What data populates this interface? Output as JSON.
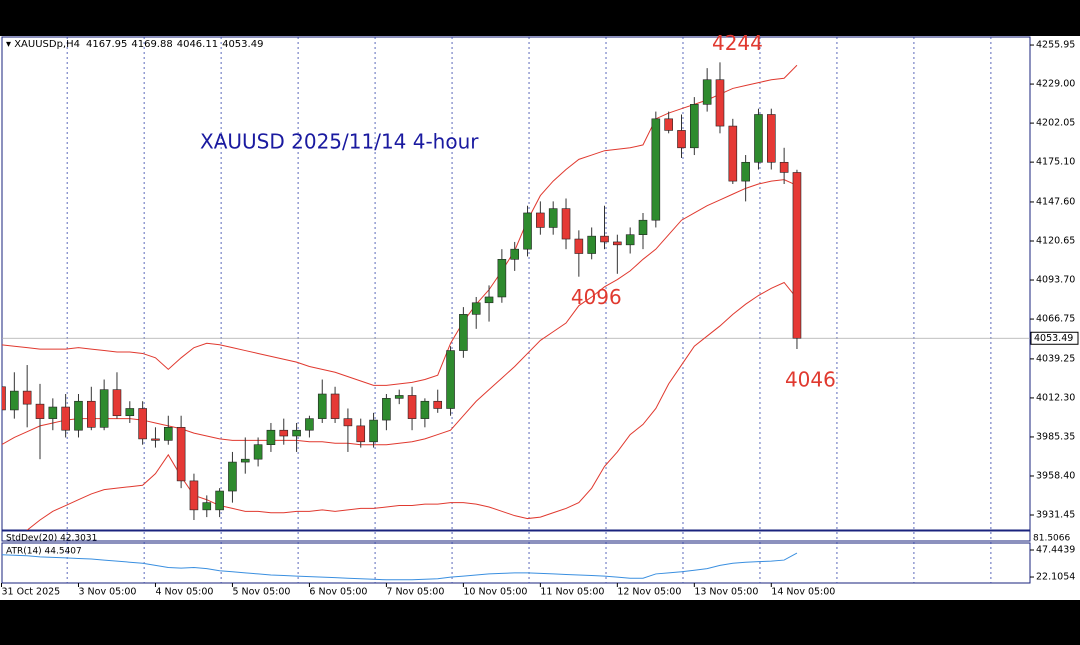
{
  "chart_data": {
    "type": "candlestick",
    "symbol": "XAUUSDp,H4",
    "title": "XAUUSD 2025/11/14 4-hour",
    "annotations": [
      {
        "text": "4244",
        "index": 56
      },
      {
        "text": "4096",
        "index": 45
      },
      {
        "text": "4046",
        "index": 62
      }
    ],
    "categories": [
      "31 Oct 2025",
      null,
      null,
      null,
      null,
      null,
      "3 Nov 05:00",
      null,
      null,
      null,
      null,
      null,
      "4 Nov 05:00",
      null,
      null,
      null,
      null,
      null,
      "5 Nov 05:00",
      null,
      null,
      null,
      null,
      null,
      "6 Nov 05:00",
      null,
      null,
      null,
      null,
      null,
      "7 Nov 05:00",
      null,
      null,
      null,
      null,
      null,
      "10 Nov 05:00",
      null,
      null,
      null,
      null,
      null,
      "11 Nov 05:00",
      null,
      null,
      null,
      null,
      null,
      "12 Nov 05:00",
      null,
      null,
      null,
      null,
      null,
      "13 Nov 05:00",
      null,
      null,
      null,
      null,
      null,
      "14 Nov 05:00",
      null,
      null
    ],
    "open": [
      4020,
      4004,
      4017,
      4008,
      3998,
      4006,
      3990,
      4010,
      3992,
      4018,
      4000,
      4005,
      3984,
      3983,
      3992,
      3955,
      3935,
      3935,
      3948,
      3968,
      3970,
      3980,
      3990,
      3986,
      3990,
      3998,
      4015,
      3998,
      3993,
      3982,
      3997,
      4012,
      4014,
      3998,
      4010,
      4005,
      4045,
      4070,
      4078,
      4082,
      4108,
      4115,
      4140,
      4130,
      4143,
      4122,
      4112,
      4124,
      4120,
      4118,
      4125,
      4135,
      4205,
      4197,
      4185,
      4215,
      4232,
      4200,
      4162,
      4175,
      4208,
      4175,
      4167.95
    ],
    "high": [
      4028,
      4030,
      4035,
      4022,
      4012,
      4015,
      4015,
      4020,
      4025,
      4030,
      4010,
      4010,
      3992,
      4000,
      4000,
      3960,
      3945,
      3950,
      3975,
      3985,
      3985,
      3995,
      3998,
      3995,
      4000,
      4025,
      4020,
      4005,
      3998,
      4002,
      4015,
      4018,
      4020,
      4012,
      4018,
      4048,
      4075,
      4082,
      4090,
      4115,
      4120,
      4145,
      4148,
      4148,
      4150,
      4128,
      4130,
      4145,
      4125,
      4130,
      4140,
      4210,
      4210,
      4208,
      4220,
      4240,
      4244,
      4205,
      4180,
      4212,
      4212,
      4185,
      4169.88
    ],
    "low": [
      3990,
      3998,
      3992,
      3970,
      3990,
      3985,
      3985,
      3990,
      3990,
      3998,
      3995,
      3980,
      3978,
      3980,
      3950,
      3928,
      3930,
      3930,
      3940,
      3960,
      3965,
      3975,
      3980,
      3975,
      3985,
      3995,
      3995,
      3975,
      3978,
      3978,
      3990,
      4008,
      3990,
      3992,
      4002,
      4000,
      4040,
      4060,
      4065,
      4078,
      4100,
      4110,
      4125,
      4125,
      4115,
      4096,
      4108,
      4115,
      4098,
      4112,
      4115,
      4130,
      4195,
      4178,
      4180,
      4210,
      4195,
      4160,
      4148,
      4170,
      4170,
      4160,
      4046.11
    ],
    "close": [
      4004,
      4017,
      4008,
      3998,
      4006,
      3990,
      4010,
      3992,
      4018,
      4000,
      4005,
      3984,
      3983,
      3992,
      3955,
      3935,
      3940,
      3948,
      3968,
      3970,
      3980,
      3990,
      3986,
      3990,
      3998,
      4015,
      3998,
      3993,
      3982,
      3997,
      4012,
      4014,
      3998,
      4010,
      4005,
      4045,
      4070,
      4078,
      4082,
      4108,
      4115,
      4140,
      4130,
      4143,
      4122,
      4112,
      4124,
      4120,
      4118,
      4125,
      4135,
      4205,
      4197,
      4185,
      4215,
      4232,
      4200,
      4162,
      4175,
      4208,
      4175,
      4168,
      4053.49
    ],
    "bull_color": "#2e8b2e",
    "bear_color": "#e53935",
    "series": [
      {
        "color": "#e0392f",
        "values": [
          4049,
          4048,
          4047,
          4046,
          4046,
          4046,
          4047,
          4046,
          4045,
          4044,
          4044,
          4043,
          4040,
          4032,
          4040,
          4047,
          4050,
          4049,
          4047,
          4045,
          4043,
          4041,
          4039,
          4037,
          4034,
          4032,
          4030,
          4027,
          4024,
          4021,
          4021,
          4022,
          4023,
          4025,
          4028,
          4050,
          4065,
          4077,
          4087,
          4100,
          4114,
          4135,
          4152,
          4162,
          4170,
          4177,
          4180,
          4183,
          4184,
          4185,
          4187,
          4205,
          4209,
          4212,
          4215,
          4218,
          4222,
          4226,
          4228,
          4230,
          4232,
          4233,
          4242
        ]
      },
      {
        "color": "#e0392f",
        "values": [
          3980,
          3985,
          3989,
          3993,
          3995,
          3997,
          3998,
          3998,
          3998,
          3998,
          3998,
          3997,
          3995,
          3993,
          3991,
          3988,
          3986,
          3984,
          3983,
          3983,
          3983,
          3983,
          3983,
          3983,
          3982,
          3982,
          3981,
          3981,
          3980,
          3980,
          3980,
          3981,
          3982,
          3984,
          3987,
          3990,
          4000,
          4010,
          4018,
          4026,
          4034,
          4043,
          4052,
          4058,
          4064,
          4076,
          4082,
          4089,
          4094,
          4100,
          4108,
          4115,
          4125,
          4135,
          4140,
          4145,
          4149,
          4153,
          4157,
          4160,
          4162,
          4163,
          4159
        ]
      },
      {
        "color": "#e0392f",
        "values": [
          3910,
          3915,
          3921,
          3928,
          3934,
          3938,
          3942,
          3946,
          3949,
          3950,
          3951,
          3952,
          3960,
          3973,
          3958,
          3945,
          3942,
          3938,
          3936,
          3934,
          3934,
          3933,
          3933,
          3934,
          3934,
          3935,
          3934,
          3935,
          3936,
          3936,
          3937,
          3938,
          3938,
          3939,
          3939,
          3940,
          3940,
          3939,
          3937,
          3934,
          3931,
          3929,
          3930,
          3933,
          3936,
          3940,
          3950,
          3965,
          3975,
          3987,
          3994,
          4005,
          4022,
          4035,
          4048,
          4055,
          4062,
          4070,
          4077,
          4083,
          4088,
          4092,
          4081
        ]
      }
    ],
    "ylim": [
      3921.1,
      4261.5
    ],
    "yticks": [
      4255.95,
      {
        "value": 4229,
        "label": "4229.00"
      },
      4202.05,
      {
        "value": 4175.1,
        "label": "4175.10"
      },
      {
        "value": 4147.6,
        "label": "4147.60"
      },
      4120.65,
      {
        "value": 4093.7,
        "label": "4093.70"
      },
      4066.75,
      4039.25,
      {
        "value": 4012.3,
        "label": "4012.30"
      },
      3985.35,
      {
        "value": 3958.4,
        "label": "3958.40"
      },
      3931.45
    ],
    "grid": true,
    "stddev": {
      "label": "StdDev(20) 42.3031",
      "tick": "81.5066"
    },
    "atr": {
      "label": "ATR(14) 44.5407",
      "color": "#3a8fe0",
      "ylim": [
        16.5,
        54
      ],
      "yticks": [
        47.4439,
        22.1054
      ],
      "values": [
        43,
        42.5,
        42,
        41,
        40.5,
        40,
        39.5,
        39,
        38,
        37,
        36,
        35,
        33,
        31,
        30.5,
        31,
        30,
        28,
        27,
        26,
        25,
        24,
        23.5,
        23,
        22.5,
        22,
        21.5,
        21,
        20.5,
        20,
        19.5,
        19.5,
        19.5,
        20,
        20.5,
        22,
        23,
        24,
        25,
        25.5,
        26,
        26,
        25.5,
        25,
        24.5,
        24,
        23.5,
        23,
        22,
        21,
        21,
        25,
        26,
        27,
        28.5,
        30,
        33,
        35,
        36,
        36.5,
        37,
        38,
        44.5407
      ]
    }
  }
}
